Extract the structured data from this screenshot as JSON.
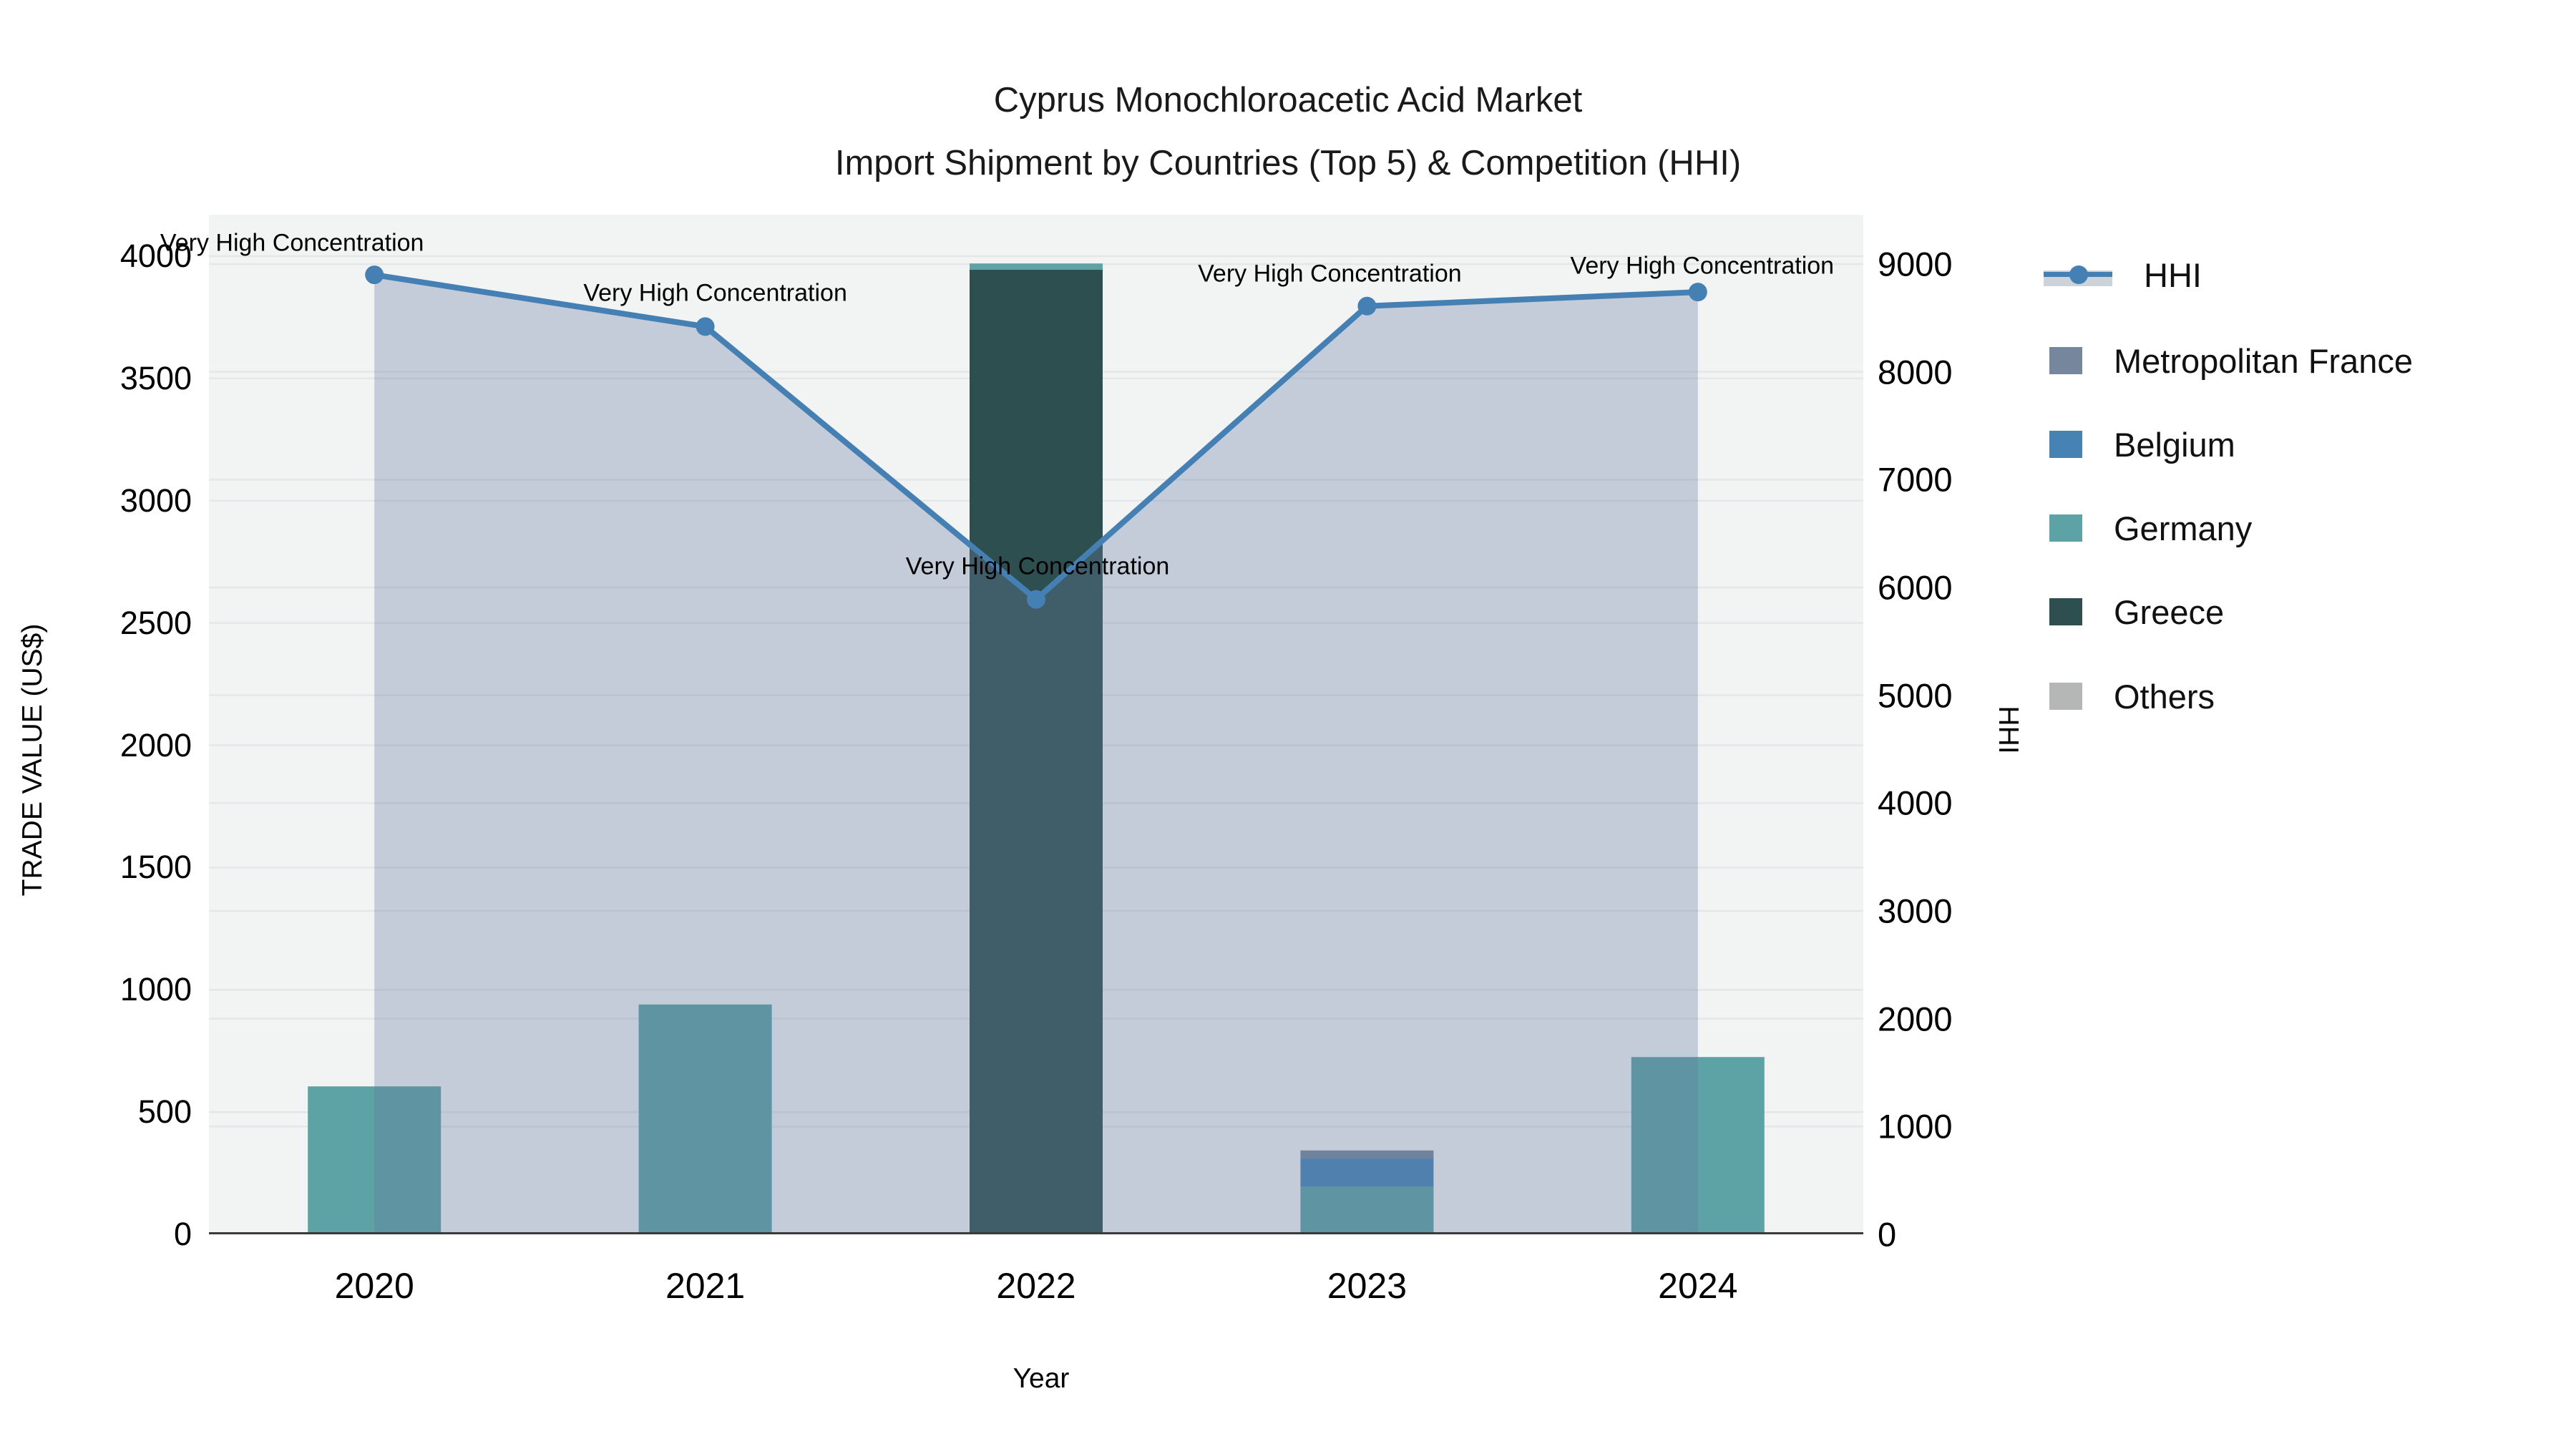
{
  "title": {
    "line1": "Cyprus Monochloroacetic Acid Market",
    "line2": "Import Shipment by Countries (Top 5) & Competition (HHI)"
  },
  "axes": {
    "x": {
      "title": "Year",
      "categories": [
        "2020",
        "2021",
        "2022",
        "2023",
        "2024"
      ]
    },
    "y_left": {
      "title": "TRADE VALUE (US$)",
      "range": [
        0,
        4000
      ],
      "ticks": [
        0,
        500,
        1000,
        1500,
        2000,
        2500,
        3000,
        3500,
        4000
      ]
    },
    "y_right": {
      "title": "HHI",
      "range": [
        0,
        9000
      ],
      "ticks": [
        0,
        1000,
        2000,
        3000,
        4000,
        5000,
        6000,
        7000,
        8000,
        9000
      ]
    }
  },
  "legend": {
    "items": [
      {
        "label": "HHI",
        "type": "line",
        "color": "#4580b4"
      },
      {
        "label": "Metropolitan France",
        "type": "square",
        "color": "#76879d"
      },
      {
        "label": "Belgium",
        "type": "square",
        "color": "#4682b4"
      },
      {
        "label": "Germany",
        "type": "square",
        "color": "#5da2a4"
      },
      {
        "label": "Greece",
        "type": "square",
        "color": "#2e4f4f"
      },
      {
        "label": "Others",
        "type": "square",
        "color": "#b5b7b7"
      }
    ]
  },
  "chart_data": {
    "type": "combo",
    "categories": [
      "2020",
      "2021",
      "2022",
      "2023",
      "2024"
    ],
    "stacked_bars": {
      "axis": "left",
      "stack_order_bottom_to_top": [
        "Others",
        "Greece",
        "Germany",
        "Belgium",
        "Metropolitan France"
      ],
      "series": [
        {
          "name": "Metropolitan France",
          "color": "#76879d",
          "values": [
            0,
            0,
            0,
            33,
            0
          ]
        },
        {
          "name": "Belgium",
          "color": "#4682b4",
          "values": [
            0,
            0,
            0,
            115,
            0
          ]
        },
        {
          "name": "Germany",
          "color": "#5da2a4",
          "values": [
            605,
            940,
            25,
            195,
            725
          ]
        },
        {
          "name": "Greece",
          "color": "#2e4f4f",
          "values": [
            0,
            0,
            3945,
            0,
            0
          ]
        },
        {
          "name": "Others",
          "color": "#b5b7b7",
          "values": [
            0,
            0,
            0,
            0,
            0
          ]
        }
      ]
    },
    "line": {
      "name": "HHI",
      "axis": "right",
      "color": "#4580b4",
      "area_fill": true,
      "fill_color": "rgba(100,125,160,0.33)",
      "values": [
        8900,
        8420,
        5890,
        8610,
        8740
      ]
    },
    "annotations": [
      {
        "x": "2020",
        "text": "Very High Concentration"
      },
      {
        "x": "2021",
        "text": "Very High Concentration"
      },
      {
        "x": "2022",
        "text": "Very High Concentration"
      },
      {
        "x": "2023",
        "text": "Very High Concentration"
      },
      {
        "x": "2024",
        "text": "Very High Concentration"
      }
    ],
    "title": "Cyprus Monochloroacetic Acid Market — Import Shipment by Countries (Top 5) & Competition (HHI)",
    "xlabel": "Year",
    "ylabel_left": "TRADE VALUE (US$)",
    "ylabel_right": "HHI",
    "grid": true,
    "legend_position": "right",
    "plot_background": "#f2f3f3",
    "gridline_color": "#e4e6e8",
    "axis_line_color": "#3a3a3a"
  }
}
